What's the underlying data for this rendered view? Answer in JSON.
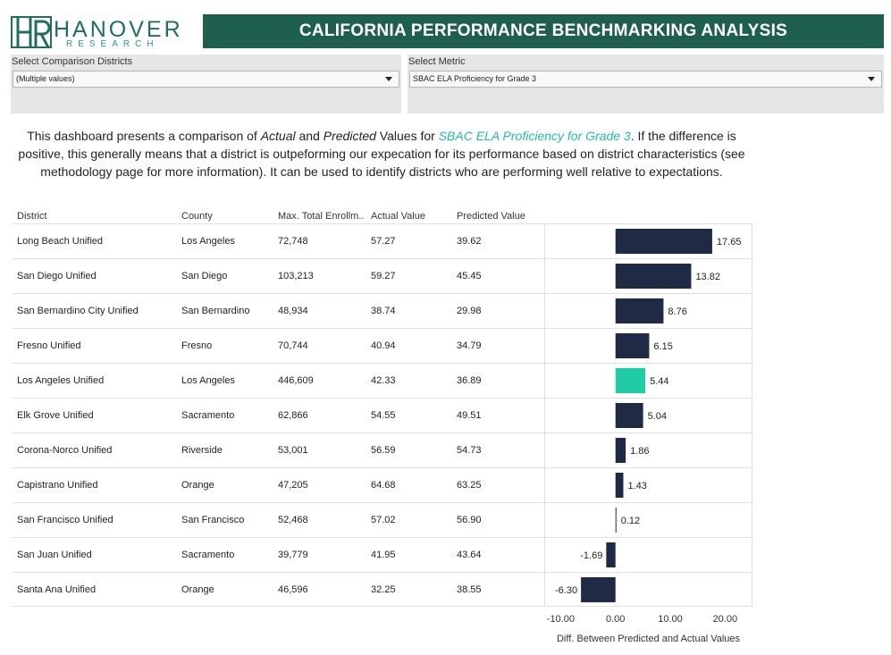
{
  "brand": {
    "name": "HANOVER",
    "sub": "RESEARCH",
    "monogram": "HR",
    "color": "#1f6f5c"
  },
  "header": {
    "title": "CALIFORNIA PERFORMANCE BENCHMARKING ANALYSIS",
    "bg_color": "#1f5f4f"
  },
  "filters": {
    "districts": {
      "label": "Select Comparison Districts",
      "value": "(Multiple values)"
    },
    "metric": {
      "label": "Select Metric",
      "value": "SBAC ELA Proficiency for Grade 3"
    }
  },
  "description": {
    "part1": "This dashboard presents a comparison of ",
    "actual": "Actual",
    "part2": " and ",
    "predicted": "Predicted",
    "part3": " Values for ",
    "metric": "SBAC ELA Proficiency for Grade 3",
    "part4": ".  If the difference is positive, this generally means that a district is outpeforming our expecation for its performance based on district characteristics (see methodology page for more information). It can be used to identify districts who are performing well relative to expectations."
  },
  "table": {
    "columns": [
      "District",
      "County",
      "Max. Total Enrollm..",
      "Actual Value",
      "Predicted Value"
    ]
  },
  "chart_data": {
    "type": "bar",
    "orientation": "horizontal",
    "xlabel": "Diff. Between Predicted and Actual Values",
    "xlim": [
      -13,
      25
    ],
    "xticks": [
      "-10.00",
      "0.00",
      "10.00",
      "20.00"
    ],
    "xtick_values": [
      -10,
      0,
      10,
      20
    ],
    "bar_color": "#1f2a44",
    "highlight_color": "#1fcca5",
    "rows": [
      {
        "district": "Long Beach Unified",
        "county": "Los Angeles",
        "enrollment": "72,748",
        "actual": "57.27",
        "predicted": "39.62",
        "diff": 17.65,
        "label": "17.65",
        "highlight": false
      },
      {
        "district": "San Diego Unified",
        "county": "San Diego",
        "enrollment": "103,213",
        "actual": "59.27",
        "predicted": "45.45",
        "diff": 13.82,
        "label": "13.82",
        "highlight": false
      },
      {
        "district": "San Bernardino City Unified",
        "county": "San Bernardino",
        "enrollment": "48,934",
        "actual": "38.74",
        "predicted": "29.98",
        "diff": 8.76,
        "label": "8.76",
        "highlight": false
      },
      {
        "district": "Fresno Unified",
        "county": "Fresno",
        "enrollment": "70,744",
        "actual": "40.94",
        "predicted": "34.79",
        "diff": 6.15,
        "label": "6.15",
        "highlight": false
      },
      {
        "district": "Los Angeles Unified",
        "county": "Los Angeles",
        "enrollment": "446,609",
        "actual": "42.33",
        "predicted": "36.89",
        "diff": 5.44,
        "label": "5.44",
        "highlight": true
      },
      {
        "district": "Elk Grove Unified",
        "county": "Sacramento",
        "enrollment": "62,866",
        "actual": "54.55",
        "predicted": "49.51",
        "diff": 5.04,
        "label": "5.04",
        "highlight": false
      },
      {
        "district": "Corona-Norco Unified",
        "county": "Riverside",
        "enrollment": "53,001",
        "actual": "56.59",
        "predicted": "54.73",
        "diff": 1.86,
        "label": "1.86",
        "highlight": false
      },
      {
        "district": "Capistrano Unified",
        "county": "Orange",
        "enrollment": "47,205",
        "actual": "64.68",
        "predicted": "63.25",
        "diff": 1.43,
        "label": "1.43",
        "highlight": false
      },
      {
        "district": "San Francisco Unified",
        "county": "San Francisco",
        "enrollment": "52,468",
        "actual": "57.02",
        "predicted": "56.90",
        "diff": 0.12,
        "label": "0.12",
        "highlight": false
      },
      {
        "district": "San Juan Unified",
        "county": "Sacramento",
        "enrollment": "39,779",
        "actual": "41.95",
        "predicted": "43.64",
        "diff": -1.69,
        "label": "-1.69",
        "highlight": false
      },
      {
        "district": "Santa Ana Unified",
        "county": "Orange",
        "enrollment": "46,596",
        "actual": "32.25",
        "predicted": "38.55",
        "diff": -6.3,
        "label": "-6.30",
        "highlight": false
      }
    ]
  }
}
